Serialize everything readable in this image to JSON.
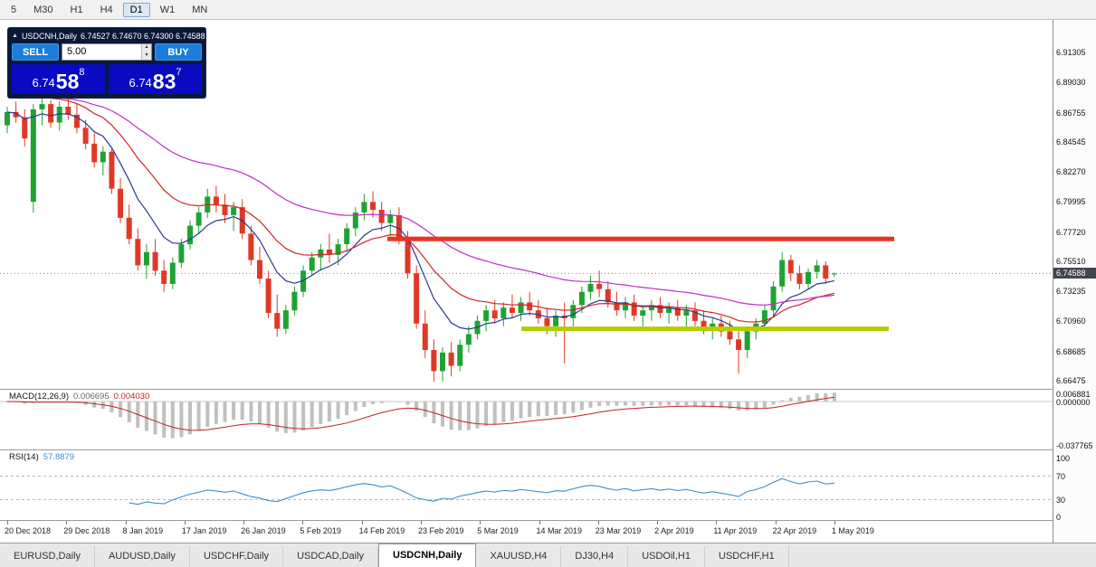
{
  "toolbar": {
    "periods": [
      "5",
      "M30",
      "H1",
      "H4",
      "D1",
      "W1",
      "MN"
    ],
    "active_period": "D1"
  },
  "trade_panel": {
    "collapse_icon": "▲",
    "title": "USDCNH,Daily",
    "ohlc_text": "6.74527 6.74670 6.74300 6.74588",
    "sell_label": "SELL",
    "buy_label": "BUY",
    "volume": "5.00",
    "spin_up_icon": "▴",
    "spin_down_icon": "▾",
    "sell_price": {
      "base": "6.74",
      "pips": "58",
      "point": "8"
    },
    "buy_price": {
      "base": "6.74",
      "pips": "83",
      "point": "7"
    }
  },
  "price_scale": {
    "labels": [
      "6.91305",
      "6.89030",
      "6.86755",
      "6.84545",
      "6.82270",
      "6.79995",
      "6.77720",
      "6.75510",
      "6.73235",
      "6.70960",
      "6.68685",
      "6.66475"
    ],
    "current_price": "6.74588"
  },
  "indicators": {
    "macd": {
      "name": "MACD(12,26,9)",
      "value_main": "0.006695",
      "value_signal": "0.004030",
      "scale_labels": [
        "0.006881",
        "0.000000",
        "-0.037765"
      ],
      "fast": 12,
      "slow": 26,
      "signal": 9
    },
    "rsi": {
      "name": "RSI(14)",
      "value": "57.8879",
      "scale_labels": [
        "100",
        "70",
        "30",
        "0"
      ],
      "period": 14
    }
  },
  "tabs": {
    "items": [
      "EURUSD,Daily",
      "AUDUSD,Daily",
      "USDCHF,Daily",
      "USDCAD,Daily",
      "USDCNH,Daily",
      "XAUUSD,H4",
      "DJ30,H4",
      "USDOil,H1",
      "USDCHF,H1"
    ],
    "active": "USDCNH,Daily"
  },
  "chart_data": {
    "type": "candlestick",
    "symbol": "USDCNH",
    "timeframe": "Daily",
    "x_labels": [
      "20 Dec 2018",
      "29 Dec 2018",
      "8 Jan 2019",
      "17 Jan 2019",
      "26 Jan 2019",
      "5 Feb 2019",
      "14 Feb 2019",
      "23 Feb 2019",
      "5 Mar 2019",
      "14 Mar 2019",
      "23 Mar 2019",
      "2 Apr 2019",
      "11 Apr 2019",
      "22 Apr 2019",
      "1 May 2019"
    ],
    "ohlc_current": {
      "open": 6.74527,
      "high": 6.7467,
      "low": 6.743,
      "close": 6.74588
    },
    "candles_ohlc": [
      [
        6.858,
        6.872,
        6.852,
        6.868
      ],
      [
        6.868,
        6.876,
        6.86,
        6.864
      ],
      [
        6.864,
        6.87,
        6.842,
        6.848
      ],
      [
        6.8,
        6.874,
        6.792,
        6.87
      ],
      [
        6.87,
        6.878,
        6.858,
        6.874
      ],
      [
        6.874,
        6.877,
        6.856,
        6.86
      ],
      [
        6.86,
        6.876,
        6.854,
        6.872
      ],
      [
        6.872,
        6.878,
        6.862,
        6.866
      ],
      [
        6.866,
        6.874,
        6.852,
        6.856
      ],
      [
        6.856,
        6.862,
        6.84,
        6.844
      ],
      [
        6.844,
        6.852,
        6.826,
        6.83
      ],
      [
        6.83,
        6.842,
        6.82,
        6.838
      ],
      [
        6.838,
        6.84,
        6.806,
        6.81
      ],
      [
        6.81,
        6.818,
        6.784,
        6.788
      ],
      [
        6.788,
        6.798,
        6.768,
        6.772
      ],
      [
        6.772,
        6.78,
        6.748,
        6.752
      ],
      [
        6.752,
        6.768,
        6.742,
        6.762
      ],
      [
        6.762,
        6.772,
        6.744,
        6.748
      ],
      [
        6.748,
        6.756,
        6.732,
        6.738
      ],
      [
        6.738,
        6.758,
        6.734,
        6.754
      ],
      [
        6.754,
        6.772,
        6.75,
        6.768
      ],
      [
        6.768,
        6.786,
        6.764,
        6.782
      ],
      [
        6.782,
        6.796,
        6.776,
        6.792
      ],
      [
        6.792,
        6.81,
        6.788,
        6.804
      ],
      [
        6.804,
        6.812,
        6.792,
        6.798
      ],
      [
        6.798,
        6.806,
        6.784,
        6.79
      ],
      [
        6.79,
        6.8,
        6.778,
        6.796
      ],
      [
        6.796,
        6.802,
        6.772,
        6.776
      ],
      [
        6.776,
        6.782,
        6.752,
        6.756
      ],
      [
        6.756,
        6.766,
        6.738,
        6.742
      ],
      [
        6.742,
        6.748,
        6.712,
        6.716
      ],
      [
        6.716,
        6.73,
        6.698,
        6.704
      ],
      [
        6.704,
        6.722,
        6.7,
        6.718
      ],
      [
        6.718,
        6.736,
        6.714,
        6.732
      ],
      [
        6.732,
        6.752,
        6.728,
        6.748
      ],
      [
        6.748,
        6.762,
        6.744,
        6.758
      ],
      [
        6.758,
        6.768,
        6.748,
        6.764
      ],
      [
        6.764,
        6.776,
        6.754,
        6.76
      ],
      [
        6.76,
        6.772,
        6.752,
        6.768
      ],
      [
        6.768,
        6.784,
        6.762,
        6.78
      ],
      [
        6.78,
        6.796,
        6.774,
        6.792
      ],
      [
        6.792,
        6.806,
        6.786,
        6.8
      ],
      [
        6.8,
        6.808,
        6.788,
        6.794
      ],
      [
        6.794,
        6.8,
        6.778,
        6.784
      ],
      [
        6.784,
        6.794,
        6.774,
        6.79
      ],
      [
        6.79,
        6.796,
        6.768,
        6.772
      ],
      [
        6.772,
        6.778,
        6.742,
        6.746
      ],
      [
        6.746,
        6.752,
        6.704,
        6.708
      ],
      [
        6.708,
        6.718,
        6.682,
        6.688
      ],
      [
        6.688,
        6.696,
        6.664,
        6.672
      ],
      [
        6.672,
        6.69,
        6.664,
        6.686
      ],
      [
        6.686,
        6.694,
        6.668,
        6.676
      ],
      [
        6.676,
        6.696,
        6.672,
        6.692
      ],
      [
        6.692,
        6.706,
        6.686,
        6.7
      ],
      [
        6.7,
        6.714,
        6.696,
        6.71
      ],
      [
        6.71,
        6.722,
        6.702,
        6.718
      ],
      [
        6.718,
        6.726,
        6.708,
        6.712
      ],
      [
        6.712,
        6.724,
        6.706,
        6.72
      ],
      [
        6.72,
        6.73,
        6.712,
        6.716
      ],
      [
        6.716,
        6.728,
        6.71,
        6.724
      ],
      [
        6.724,
        6.732,
        6.714,
        6.718
      ],
      [
        6.718,
        6.726,
        6.708,
        6.712
      ],
      [
        6.712,
        6.72,
        6.7,
        6.706
      ],
      [
        6.706,
        6.718,
        6.698,
        6.714
      ],
      [
        6.714,
        6.724,
        6.678,
        6.712
      ],
      [
        6.712,
        6.726,
        6.706,
        6.722
      ],
      [
        6.722,
        6.736,
        6.716,
        6.732
      ],
      [
        6.732,
        6.744,
        6.726,
        6.738
      ],
      [
        6.738,
        6.748,
        6.728,
        6.734
      ],
      [
        6.734,
        6.74,
        6.72,
        6.724
      ],
      [
        6.724,
        6.732,
        6.714,
        6.718
      ],
      [
        6.718,
        6.728,
        6.712,
        6.724
      ],
      [
        6.724,
        6.73,
        6.71,
        6.714
      ],
      [
        6.714,
        6.722,
        6.706,
        6.718
      ],
      [
        6.718,
        6.726,
        6.71,
        6.722
      ],
      [
        6.722,
        6.728,
        6.712,
        6.716
      ],
      [
        6.716,
        6.724,
        6.708,
        6.72
      ],
      [
        6.72,
        6.726,
        6.71,
        6.714
      ],
      [
        6.714,
        6.722,
        6.704,
        6.718
      ],
      [
        6.718,
        6.724,
        6.706,
        6.71
      ],
      [
        6.71,
        6.718,
        6.7,
        6.704
      ],
      [
        6.704,
        6.712,
        6.696,
        6.708
      ],
      [
        6.708,
        6.714,
        6.698,
        6.702
      ],
      [
        6.702,
        6.71,
        6.692,
        6.696
      ],
      [
        6.696,
        6.702,
        6.67,
        6.688
      ],
      [
        6.688,
        6.706,
        6.682,
        6.702
      ],
      [
        6.702,
        6.712,
        6.696,
        6.708
      ],
      [
        6.708,
        6.722,
        6.704,
        6.718
      ],
      [
        6.718,
        6.74,
        6.714,
        6.736
      ],
      [
        6.736,
        6.762,
        6.732,
        6.756
      ],
      [
        6.756,
        6.76,
        6.74,
        6.746
      ],
      [
        6.746,
        6.752,
        6.734,
        6.738
      ],
      [
        6.738,
        6.75,
        6.734,
        6.747
      ],
      [
        6.747,
        6.756,
        6.742,
        6.752
      ],
      [
        6.752,
        6.755,
        6.738,
        6.742
      ],
      [
        6.74527,
        6.7467,
        6.743,
        6.74588
      ]
    ],
    "overlays": {
      "resistance_line": {
        "price": 6.772,
        "color": "#ea3323"
      },
      "support_line": {
        "price": 6.704,
        "color": "#b4cc00"
      },
      "current_price_line": {
        "price": 6.74588,
        "color": "#e06060"
      }
    },
    "moving_averages": [
      {
        "type": "ema",
        "period": 8,
        "color": "#2b3990",
        "seed": 6.868
      },
      {
        "type": "ema",
        "period": 18,
        "color": "#cf2525",
        "seed": 6.892
      },
      {
        "type": "ema",
        "period": 42,
        "color": "#c32cc3",
        "seed": 6.884
      }
    ],
    "colors": {
      "up": "#1fa233",
      "down": "#e03826",
      "macd_hist": "#c0c0c0",
      "macd_signal": "#c02323",
      "rsi": "#3e8fcc"
    }
  }
}
